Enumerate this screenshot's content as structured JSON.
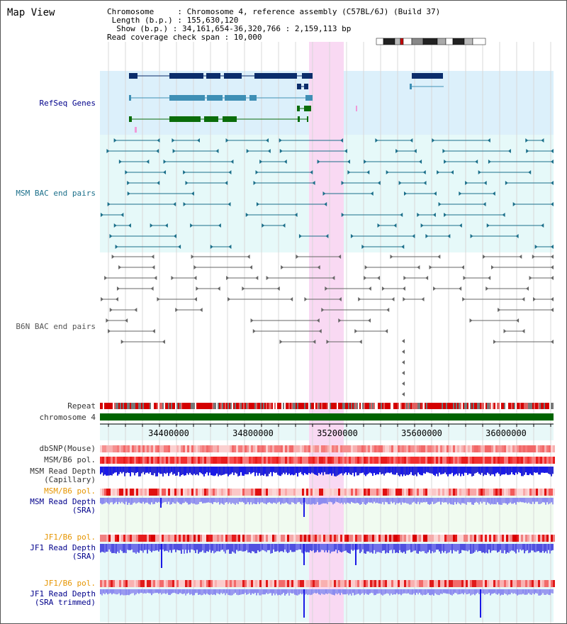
{
  "header": {
    "view_title": "Map View",
    "chromosome_line": "Chromosome     : Chromosome 4, reference assembly (C57BL/6J) (Build 37)",
    "length_line": " Length (b.p.) : 155,630,120",
    "show_line": "  Show (b.p.) : 34,161,654-36,320,766 : 2,159,113 bp",
    "coverage_line": "Read coverage check span : 10,000"
  },
  "tracks": {
    "refseq": {
      "label": "RefSeq Genes",
      "color": "#00008b"
    },
    "msm_bac": {
      "label": "MSM BAC end pairs",
      "color": "#1b6f8a"
    },
    "b6n_bac": {
      "label": "B6N BAC end pairs",
      "color": "#555555"
    },
    "repeat": {
      "label": "Repeat"
    },
    "chromosome": {
      "label": "chromosome 4",
      "color": "#006400"
    },
    "dbsnp": {
      "label": "dbSNP(Mouse)"
    },
    "msm_b6_pol": {
      "label": "MSM/B6 pol."
    },
    "msm_depth_cap": {
      "label": "MSM Read Depth\n(Capillary)"
    },
    "msm_b6_pol_sra": {
      "label": "MSM/B6 pol.",
      "color": "#e69500"
    },
    "msm_depth_sra": {
      "label": "MSM Read Depth\n(SRA)",
      "color": "#00008b"
    },
    "jf1_b6_pol": {
      "label": "JF1/B6 pol.",
      "color": "#e69500"
    },
    "jf1_depth_sra": {
      "label": "JF1 Read Depth\n(SRA)",
      "color": "#00008b"
    },
    "jf1_b6_pol2": {
      "label": "JF1/B6 pol.",
      "color": "#e69500"
    },
    "jf1_depth_trim": {
      "label": "JF1 Read Depth\n(SRA trimmed)",
      "color": "#00008b"
    }
  },
  "axis": {
    "ticks": [
      "34400000",
      "34800000",
      "35200000",
      "35600000",
      "36000000"
    ]
  },
  "colors": {
    "highlight": "#f9d9f3",
    "refseq_bg": "#dcf0fb",
    "msm_bg": "#e6f9f9",
    "depth_blue": "#1a1ae6",
    "depth_light": "#8c8cf0",
    "pol_red": "#e62222"
  }
}
